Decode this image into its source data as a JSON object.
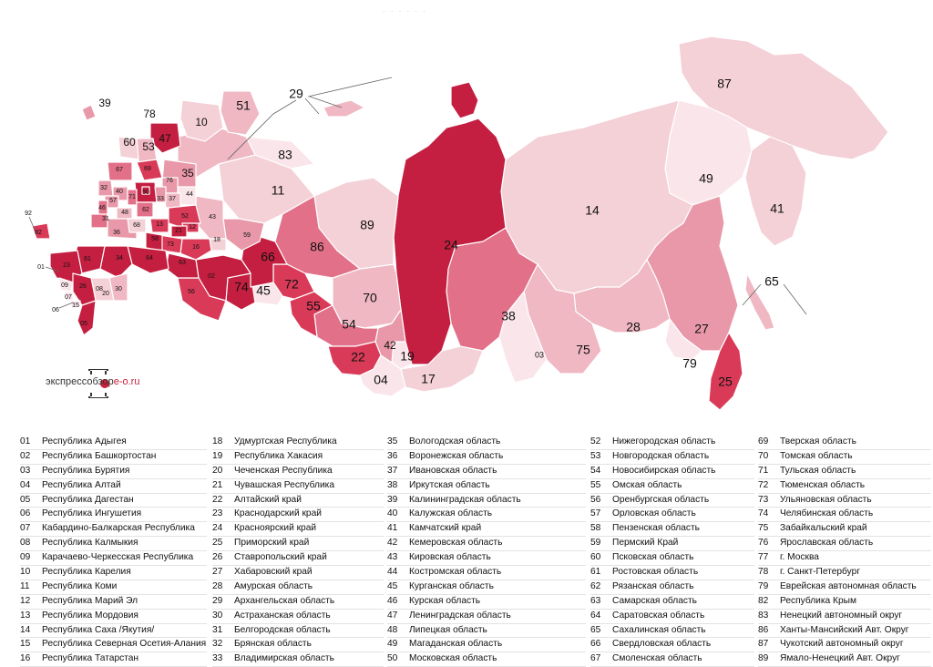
{
  "map": {
    "labels": {
      "r01": "01",
      "r02": "02",
      "r03": "03",
      "r04": "04",
      "r05": "05",
      "r06": "06",
      "r07": "07",
      "r08": "08",
      "r09": "09",
      "r10": "10",
      "r11": "11",
      "r12": "12",
      "r13": "13",
      "r14": "14",
      "r15": "15",
      "r16": "16",
      "r17": "17",
      "r18": "18",
      "r19": "19",
      "r20": "20",
      "r21": "21",
      "r22": "22",
      "r23": "23",
      "r24": "24",
      "r25": "25",
      "r26": "26",
      "r27": "27",
      "r28": "28",
      "r29": "29",
      "r30": "30",
      "r31": "31",
      "r32": "32",
      "r33": "33",
      "r34": "34",
      "r35": "35",
      "r36": "36",
      "r37": "37",
      "r38": "38",
      "r39": "39",
      "r40": "40",
      "r41": "41",
      "r42": "42",
      "r43": "43",
      "r44": "44",
      "r45": "45",
      "r46": "46",
      "r47": "47",
      "r48": "48",
      "r49": "49",
      "r50": "50",
      "r51": "51",
      "r52": "52",
      "r53": "53",
      "r54": "54",
      "r55": "55",
      "r56": "56",
      "r57": "57",
      "r58": "58",
      "r59": "59",
      "r60": "60",
      "r61": "61",
      "r62": "62",
      "r63": "63",
      "r64": "64",
      "r65": "65",
      "r66": "66",
      "r67": "67",
      "r68": "68",
      "r69": "69",
      "r70": "70",
      "r71": "71",
      "r72": "72",
      "r73": "73",
      "r74": "74",
      "r75": "75",
      "r76": "76",
      "r78": "78",
      "r79": "79",
      "r82": "82",
      "r83": "83",
      "r86": "86",
      "r87": "87",
      "r89": "89",
      "r92": "92"
    },
    "colors": {
      "darkest": "#c41f40",
      "dark": "#d93a58",
      "mid": "#e27088",
      "midlight": "#e898a8",
      "light": "#efb8c3",
      "lighter": "#f4d0d7",
      "palest": "#fae6ea"
    }
  },
  "logo": {
    "prefix": "экспрессобзор",
    "brand": "e-o.ru"
  },
  "legend": {
    "columns": [
      [
        {
          "code": "01",
          "name": "Республика Адыгея"
        },
        {
          "code": "02",
          "name": "Республика Башкортостан"
        },
        {
          "code": "03",
          "name": "Республика Бурятия"
        },
        {
          "code": "04",
          "name": "Республика Алтай"
        },
        {
          "code": "05",
          "name": "Республика Дагестан"
        },
        {
          "code": "06",
          "name": "Республика Ингушетия"
        },
        {
          "code": "07",
          "name": "Кабардино-Балкарская Республика"
        },
        {
          "code": "08",
          "name": "Республика Калмыкия"
        },
        {
          "code": "09",
          "name": "Карачаево-Черкесская Республика"
        },
        {
          "code": "10",
          "name": "Республика Карелия"
        },
        {
          "code": "11",
          "name": "Республика Коми"
        },
        {
          "code": "12",
          "name": "Республика Марий Эл"
        },
        {
          "code": "13",
          "name": "Республика Мордовия"
        },
        {
          "code": "14",
          "name": "Республика Саха /Якутия/"
        },
        {
          "code": "15",
          "name": "Республика Северная Осетия-Алания"
        },
        {
          "code": "16",
          "name": "Республика Татарстан"
        }
      ],
      [
        {
          "code": "18",
          "name": "Удмуртская Республика"
        },
        {
          "code": "19",
          "name": "Республика Хакасия"
        },
        {
          "code": "20",
          "name": "Чеченская Республика"
        },
        {
          "code": "21",
          "name": "Чувашская Республика"
        },
        {
          "code": "22",
          "name": "Алтайский край"
        },
        {
          "code": "23",
          "name": "Краснодарский край"
        },
        {
          "code": "24",
          "name": "Красноярский край"
        },
        {
          "code": "25",
          "name": "Приморский край"
        },
        {
          "code": "26",
          "name": "Ставропольский край"
        },
        {
          "code": "27",
          "name": "Хабаровский край"
        },
        {
          "code": "28",
          "name": "Амурская область"
        },
        {
          "code": "29",
          "name": "Архангельская область"
        },
        {
          "code": "30",
          "name": "Астраханская область"
        },
        {
          "code": "31",
          "name": "Белгородская область"
        },
        {
          "code": "32",
          "name": "Брянская область"
        },
        {
          "code": "33",
          "name": "Владимирская область"
        }
      ],
      [
        {
          "code": "35",
          "name": "Вологодская область"
        },
        {
          "code": "36",
          "name": "Воронежская область"
        },
        {
          "code": "37",
          "name": "Ивановская область"
        },
        {
          "code": "38",
          "name": "Иркутская область"
        },
        {
          "code": "39",
          "name": "Калининградская область"
        },
        {
          "code": "40",
          "name": "Калужская область"
        },
        {
          "code": "41",
          "name": "Камчатский край"
        },
        {
          "code": "42",
          "name": "Кемеровская область"
        },
        {
          "code": "43",
          "name": "Кировская область"
        },
        {
          "code": "44",
          "name": "Костромская область"
        },
        {
          "code": "45",
          "name": "Курганская область"
        },
        {
          "code": "46",
          "name": "Курская область"
        },
        {
          "code": "47",
          "name": "Ленинградская область"
        },
        {
          "code": "48",
          "name": "Липецкая область"
        },
        {
          "code": "49",
          "name": "Магаданская область"
        },
        {
          "code": "50",
          "name": "Московская область"
        }
      ],
      [
        {
          "code": "52",
          "name": "Нижегородская область"
        },
        {
          "code": "53",
          "name": "Новгородская область"
        },
        {
          "code": "54",
          "name": "Новосибирская область"
        },
        {
          "code": "55",
          "name": "Омская область"
        },
        {
          "code": "56",
          "name": "Оренбургская область"
        },
        {
          "code": "57",
          "name": "Орловская область"
        },
        {
          "code": "58",
          "name": "Пензенская область"
        },
        {
          "code": "59",
          "name": "Пермский Край"
        },
        {
          "code": "60",
          "name": "Псковская область"
        },
        {
          "code": "61",
          "name": "Ростовская область"
        },
        {
          "code": "62",
          "name": "Рязанская область"
        },
        {
          "code": "63",
          "name": "Самарская область"
        },
        {
          "code": "64",
          "name": "Саратовская область"
        },
        {
          "code": "65",
          "name": "Сахалинская область"
        },
        {
          "code": "66",
          "name": "Свердловская область"
        },
        {
          "code": "67",
          "name": "Смоленская область"
        }
      ],
      [
        {
          "code": "69",
          "name": "Тверская область"
        },
        {
          "code": "70",
          "name": "Томская область"
        },
        {
          "code": "71",
          "name": "Тульская область"
        },
        {
          "code": "72",
          "name": "Тюменская область"
        },
        {
          "code": "73",
          "name": "Ульяновская область"
        },
        {
          "code": "74",
          "name": "Челябинская область"
        },
        {
          "code": "75",
          "name": "Забайкальский край"
        },
        {
          "code": "76",
          "name": "Ярославская область"
        },
        {
          "code": "77",
          "name": "г. Москва"
        },
        {
          "code": "78",
          "name": "г. Санкт-Петербург"
        },
        {
          "code": "79",
          "name": "Еврейская автономная область"
        },
        {
          "code": "82",
          "name": "Республика Крым"
        },
        {
          "code": "83",
          "name": " Ненецкий автономный округ"
        },
        {
          "code": "86",
          "name": "Ханты-Мансийский Авт. Округ"
        },
        {
          "code": "87",
          "name": "Чукотский автономный округ"
        },
        {
          "code": "89",
          "name": "Ямало-Ненецкий Авт. Округ"
        }
      ]
    ]
  }
}
